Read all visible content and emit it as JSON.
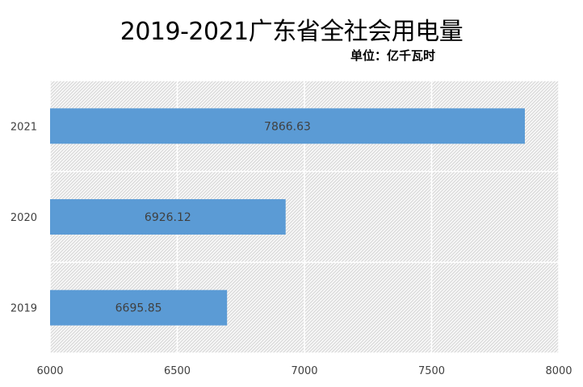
{
  "chart_data": {
    "type": "bar",
    "orientation": "horizontal",
    "title": "2019-2021广东省全社会用电量",
    "subtitle": "单位：亿千瓦时",
    "categories": [
      "2021",
      "2020",
      "2019"
    ],
    "values": [
      7866.63,
      6926.12,
      6695.85
    ],
    "value_labels": [
      "7866.63",
      "6926.12",
      "6695.85"
    ],
    "xlim": [
      6000,
      8000
    ],
    "x_ticks": [
      6000,
      6500,
      7000,
      7500,
      8000
    ],
    "x_tick_labels": [
      "6000",
      "6500",
      "7000",
      "7500",
      "8000"
    ],
    "grid": true,
    "legend": "none",
    "colors": {
      "bar": "#5b9bd5",
      "plot_bg": "#f2f2f2",
      "hatch": "#d0d0d0",
      "grid": "#ffffff"
    }
  }
}
